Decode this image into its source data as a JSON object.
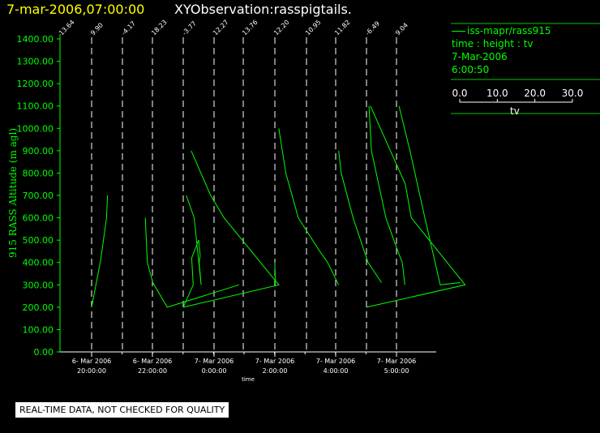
{
  "header": {
    "date_time": "7-mar-2006,07:00:00",
    "observation": "XYObservation:rasspigtails."
  },
  "legend": {
    "series": "iss-mapr/rass915",
    "vars": "time : height : tv",
    "date": "7-Mar-2006",
    "time": "6:00:50",
    "scale_ticks": [
      "0.0",
      "10.0",
      "20.0",
      "30.0"
    ],
    "scale_label": "tv"
  },
  "footer": {
    "quality": "REAL-TIME DATA, NOT CHECKED FOR QUALITY"
  },
  "chart_data": {
    "type": "line",
    "title": "XYObservation:rasspigtails.",
    "ylabel": "915 RASS Altitude (m agl)",
    "xlabel": "time",
    "ylim": [
      0,
      1400
    ],
    "ytick_labels": [
      "0.00",
      "100.00",
      "200.00",
      "300.00",
      "400.00",
      "500.00",
      "600.00",
      "700.00",
      "800.00",
      "900.00",
      "1000.00",
      "1100.00",
      "1200.00",
      "1300.00",
      "1400.00"
    ],
    "xtick_labels": [
      {
        "date": "6- Mar 2006",
        "time": "20:00:00"
      },
      {
        "date": "6- Mar 2006",
        "time": "22:00:00"
      },
      {
        "date": "7- Mar 2006",
        "time": "0:00:00"
      },
      {
        "date": "7- Mar 2006",
        "time": "2:00:00"
      },
      {
        "date": "7- Mar 2006",
        "time": "4:00:00"
      },
      {
        "date": "7- Mar 2006",
        "time": "5:00:00"
      }
    ],
    "column_labels": [
      "13.64",
      "9.90",
      "-4.17",
      "18.23",
      "-3.77",
      "12.27",
      "13.76",
      "12.20",
      "10.95",
      "11.82",
      "-6.49",
      "9.04"
    ],
    "series_color": "#00ff00",
    "profiles": [
      {
        "points": [
          [
            0.0,
            200
          ],
          [
            1.8,
            410
          ],
          [
            3.0,
            600
          ],
          [
            3.2,
            700
          ]
        ]
      },
      {
        "points": [
          [
            4.6,
            600
          ],
          [
            5.0,
            400
          ],
          [
            6.1,
            310
          ],
          [
            9.0,
            200
          ],
          [
            23.4,
            300
          ]
        ]
      },
      {
        "points": [
          [
            0.0,
            200
          ],
          [
            2.0,
            300
          ],
          [
            1.7,
            420
          ],
          [
            3.1,
            500
          ],
          [
            3.4,
            430
          ],
          [
            3.2,
            400
          ],
          [
            3.6,
            300
          ],
          [
            2.2,
            600
          ],
          [
            0.6,
            700
          ]
        ]
      },
      {
        "points": [
          [
            0.0,
            200
          ],
          [
            19.2,
            300
          ],
          [
            8.2,
            600
          ],
          [
            5.5,
            700
          ],
          [
            1.6,
            900
          ]
        ]
      },
      {
        "points": [
          [
            0.1,
            300
          ],
          [
            0.0,
            400
          ]
        ]
      },
      {
        "points": [
          [
            0.8,
            1000
          ],
          [
            2.2,
            800
          ],
          [
            4.7,
            600
          ],
          [
            9.0,
            450
          ],
          [
            10.6,
            400
          ],
          [
            12.8,
            300
          ]
        ]
      },
      {
        "points": [
          [
            0.6,
            900
          ],
          [
            1.1,
            800
          ],
          [
            3.5,
            600
          ],
          [
            6.5,
            400
          ],
          [
            9.2,
            310
          ]
        ]
      },
      {
        "points": [
          [
            0.0,
            200
          ],
          [
            19.8,
            300
          ],
          [
            9.0,
            600
          ],
          [
            7.8,
            750
          ],
          [
            0.8,
            1100
          ]
        ]
      },
      {
        "points": [
          [
            0.5,
            1100
          ],
          [
            1.0,
            900
          ],
          [
            3.9,
            600
          ],
          [
            6.3,
            450
          ],
          [
            7.2,
            400
          ],
          [
            7.7,
            300
          ]
        ]
      },
      {
        "points": [
          [
            0.5,
            1100
          ],
          [
            2.7,
            900
          ],
          [
            5.7,
            600
          ],
          [
            8.8,
            300
          ],
          [
            12.8,
            310
          ]
        ]
      }
    ]
  }
}
